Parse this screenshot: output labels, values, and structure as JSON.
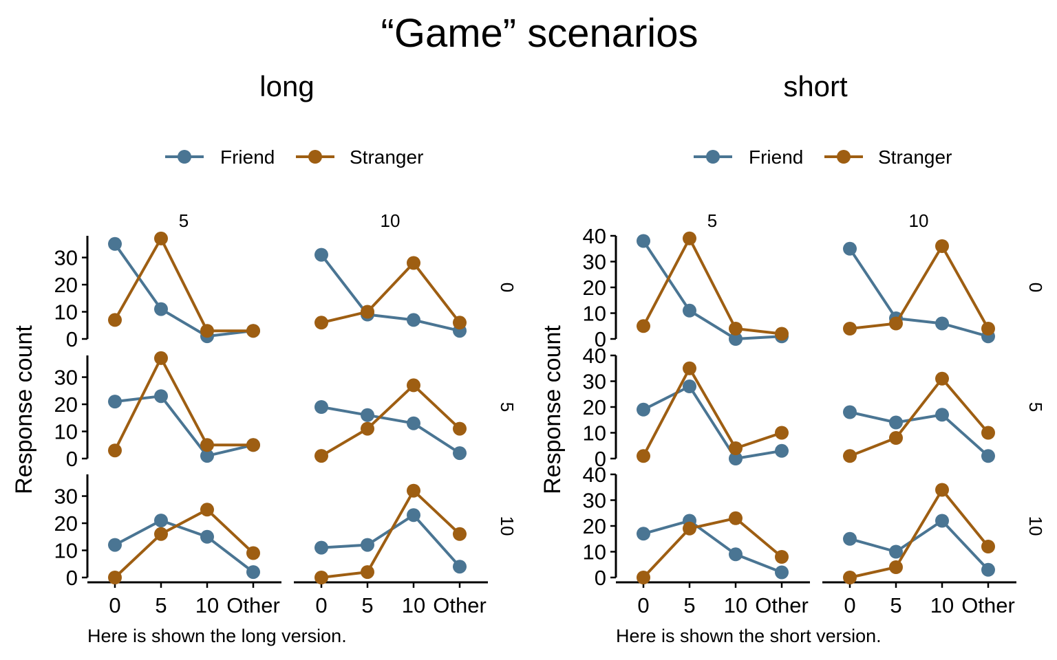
{
  "title": "“Game” scenarios",
  "colors": {
    "friend": "#4a7593",
    "stranger": "#9e5e12"
  },
  "chart_data": [
    {
      "type": "line",
      "subtitle": "long",
      "caption": "Here is shown the long version.",
      "ylabel": "Response count",
      "legend": [
        "Friend",
        "Stranger"
      ],
      "legend_position": "top",
      "categories": [
        "0",
        "5",
        "10",
        "Other"
      ],
      "yticks": [
        0,
        10,
        20,
        30
      ],
      "ylim": [
        0,
        38
      ],
      "col_facets": [
        "5",
        "10"
      ],
      "row_facets": [
        "0",
        "5",
        "10"
      ],
      "panels": [
        {
          "col": "5",
          "row": "0",
          "series": [
            {
              "name": "Friend",
              "values": [
                35,
                11,
                1,
                3
              ]
            },
            {
              "name": "Stranger",
              "values": [
                7,
                37,
                3,
                3
              ]
            }
          ]
        },
        {
          "col": "10",
          "row": "0",
          "series": [
            {
              "name": "Friend",
              "values": [
                31,
                9,
                7,
                3
              ]
            },
            {
              "name": "Stranger",
              "values": [
                6,
                10,
                28,
                6
              ]
            }
          ]
        },
        {
          "col": "5",
          "row": "5",
          "series": [
            {
              "name": "Friend",
              "values": [
                21,
                23,
                1,
                5
              ]
            },
            {
              "name": "Stranger",
              "values": [
                3,
                37,
                5,
                5
              ]
            }
          ]
        },
        {
          "col": "10",
          "row": "5",
          "series": [
            {
              "name": "Friend",
              "values": [
                19,
                16,
                13,
                2
              ]
            },
            {
              "name": "Stranger",
              "values": [
                1,
                11,
                27,
                11
              ]
            }
          ]
        },
        {
          "col": "5",
          "row": "10",
          "series": [
            {
              "name": "Friend",
              "values": [
                12,
                21,
                15,
                2
              ]
            },
            {
              "name": "Stranger",
              "values": [
                0,
                16,
                25,
                9
              ]
            }
          ]
        },
        {
          "col": "10",
          "row": "10",
          "series": [
            {
              "name": "Friend",
              "values": [
                11,
                12,
                23,
                4
              ]
            },
            {
              "name": "Stranger",
              "values": [
                0,
                2,
                32,
                16
              ]
            }
          ]
        }
      ]
    },
    {
      "type": "line",
      "subtitle": "short",
      "caption": "Here is shown the short version.",
      "ylabel": "Response count",
      "legend": [
        "Friend",
        "Stranger"
      ],
      "legend_position": "top",
      "categories": [
        "0",
        "5",
        "10",
        "Other"
      ],
      "yticks": [
        0,
        10,
        20,
        30,
        40
      ],
      "ylim": [
        0,
        40
      ],
      "col_facets": [
        "5",
        "10"
      ],
      "row_facets": [
        "0",
        "5",
        "10"
      ],
      "panels": [
        {
          "col": "5",
          "row": "0",
          "series": [
            {
              "name": "Friend",
              "values": [
                38,
                11,
                0,
                1
              ]
            },
            {
              "name": "Stranger",
              "values": [
                5,
                39,
                4,
                2
              ]
            }
          ]
        },
        {
          "col": "10",
          "row": "0",
          "series": [
            {
              "name": "Friend",
              "values": [
                35,
                8,
                6,
                1
              ]
            },
            {
              "name": "Stranger",
              "values": [
                4,
                6,
                36,
                4
              ]
            }
          ]
        },
        {
          "col": "5",
          "row": "5",
          "series": [
            {
              "name": "Friend",
              "values": [
                19,
                28,
                0,
                3
              ]
            },
            {
              "name": "Stranger",
              "values": [
                1,
                35,
                4,
                10
              ]
            }
          ]
        },
        {
          "col": "10",
          "row": "5",
          "series": [
            {
              "name": "Friend",
              "values": [
                18,
                14,
                17,
                1
              ]
            },
            {
              "name": "Stranger",
              "values": [
                1,
                8,
                31,
                10
              ]
            }
          ]
        },
        {
          "col": "5",
          "row": "10",
          "series": [
            {
              "name": "Friend",
              "values": [
                17,
                22,
                9,
                2
              ]
            },
            {
              "name": "Stranger",
              "values": [
                0,
                19,
                23,
                8
              ]
            }
          ]
        },
        {
          "col": "10",
          "row": "10",
          "series": [
            {
              "name": "Friend",
              "values": [
                15,
                10,
                22,
                3
              ]
            },
            {
              "name": "Stranger",
              "values": [
                0,
                4,
                34,
                12
              ]
            }
          ]
        }
      ]
    }
  ]
}
